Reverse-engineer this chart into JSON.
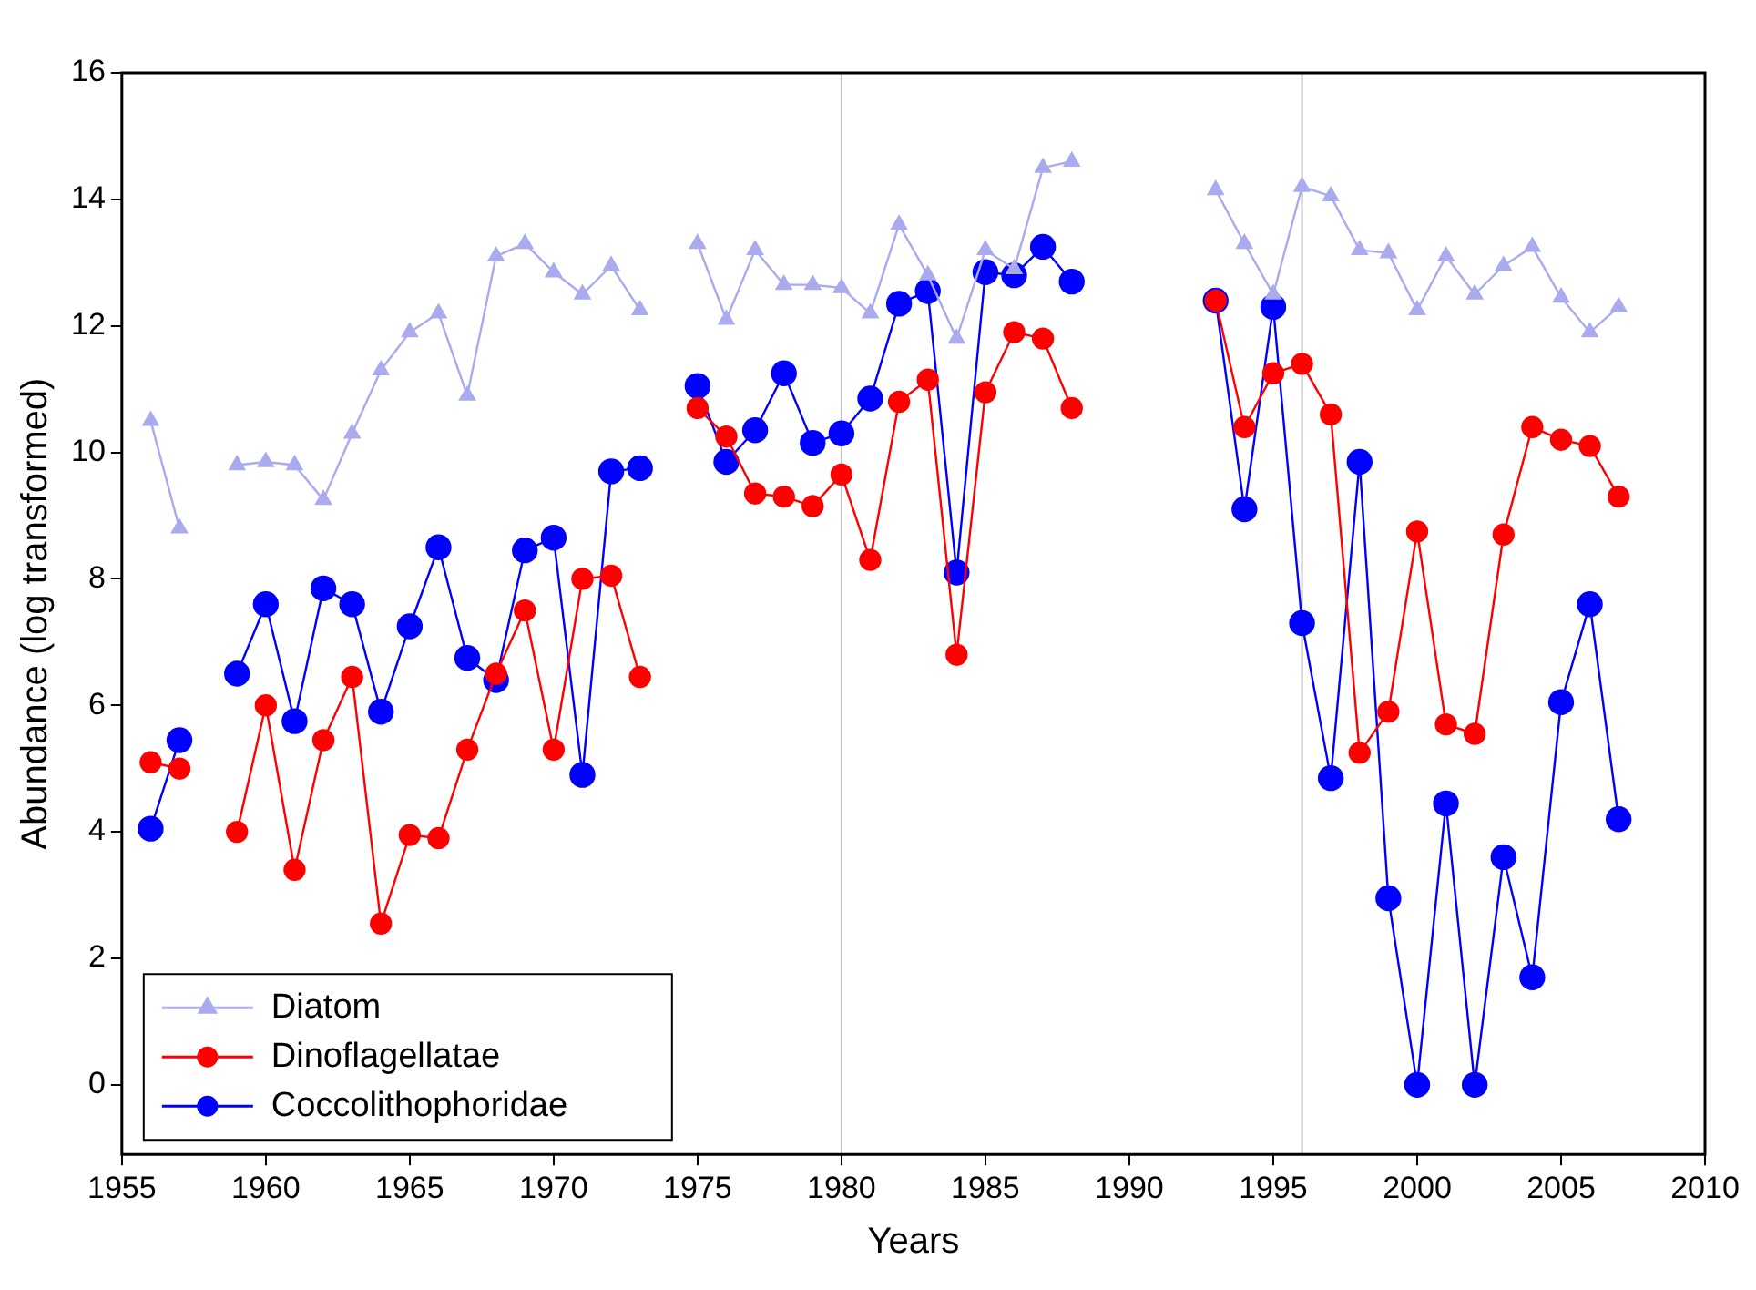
{
  "chart_data": {
    "type": "line",
    "xlabel": "Years",
    "ylabel": "Abundance (log transformed)",
    "x": [
      1956,
      1957,
      1958,
      1959,
      1960,
      1961,
      1962,
      1963,
      1964,
      1965,
      1966,
      1967,
      1968,
      1969,
      1970,
      1971,
      1972,
      1973,
      1974,
      1975,
      1976,
      1977,
      1978,
      1979,
      1980,
      1981,
      1982,
      1983,
      1984,
      1985,
      1986,
      1987,
      1988,
      1989,
      1990,
      1991,
      1992,
      1993,
      1994,
      1995,
      1996,
      1997,
      1998,
      1999,
      2000,
      2001,
      2002,
      2003,
      2004,
      2005,
      2006,
      2007
    ],
    "series": [
      {
        "name": "Diatom",
        "color": "#aaaaee",
        "marker": "triangle",
        "values": [
          10.5,
          8.8,
          null,
          9.8,
          9.85,
          9.8,
          9.25,
          10.3,
          11.3,
          11.9,
          12.2,
          10.9,
          13.1,
          13.3,
          12.85,
          12.5,
          12.95,
          12.25,
          null,
          13.3,
          12.1,
          13.2,
          12.65,
          12.65,
          12.6,
          12.2,
          13.6,
          12.8,
          11.8,
          13.2,
          12.9,
          14.5,
          14.6,
          null,
          null,
          null,
          null,
          14.15,
          13.3,
          12.5,
          14.2,
          14.05,
          13.2,
          13.15,
          12.25,
          13.1,
          12.5,
          12.95,
          13.25,
          12.45,
          11.9,
          12.3
        ]
      },
      {
        "name": "Dinoflagellatae",
        "color": "#ff0000",
        "marker": "circle",
        "values": [
          5.1,
          5.0,
          null,
          4.0,
          6.0,
          3.4,
          5.45,
          6.45,
          2.55,
          3.95,
          3.9,
          5.3,
          6.5,
          7.5,
          5.3,
          8.0,
          8.05,
          6.45,
          null,
          10.7,
          10.25,
          9.35,
          9.3,
          9.15,
          9.65,
          8.3,
          10.8,
          11.15,
          6.8,
          10.95,
          11.9,
          11.8,
          10.7,
          null,
          null,
          null,
          null,
          12.4,
          10.4,
          11.25,
          11.4,
          10.6,
          5.25,
          5.9,
          8.75,
          5.7,
          5.55,
          8.7,
          10.4,
          10.2,
          10.1,
          9.3
        ]
      },
      {
        "name": "Coccolithophoridae",
        "color": "#0000ff",
        "marker": "circle",
        "values": [
          4.05,
          5.45,
          null,
          6.5,
          7.6,
          5.75,
          7.85,
          7.6,
          5.9,
          7.25,
          8.5,
          6.75,
          6.4,
          8.45,
          8.65,
          4.9,
          9.7,
          9.75,
          null,
          11.05,
          9.85,
          10.35,
          11.25,
          10.15,
          10.3,
          10.85,
          12.35,
          12.55,
          8.1,
          12.85,
          12.8,
          13.25,
          12.7,
          null,
          null,
          null,
          null,
          12.4,
          9.1,
          12.3,
          7.3,
          4.85,
          9.85,
          2.95,
          0,
          4.45,
          0,
          3.6,
          1.7,
          6.05,
          7.6,
          4.2
        ]
      }
    ],
    "xlim": [
      1955,
      2010
    ],
    "xticks": [
      1955,
      1960,
      1965,
      1970,
      1975,
      1980,
      1985,
      1990,
      1995,
      2000,
      2005,
      2010
    ],
    "ylim": [
      -1.1,
      16
    ],
    "yticks": [
      0,
      2,
      4,
      6,
      8,
      10,
      12,
      14,
      16
    ],
    "ref_lines": [
      {
        "axis": "x",
        "value": 1980,
        "color": "#c0c0c0"
      },
      {
        "axis": "x",
        "value": 1996,
        "color": "#c0c0c0"
      }
    ],
    "grid": false,
    "legend": "bottom left"
  }
}
